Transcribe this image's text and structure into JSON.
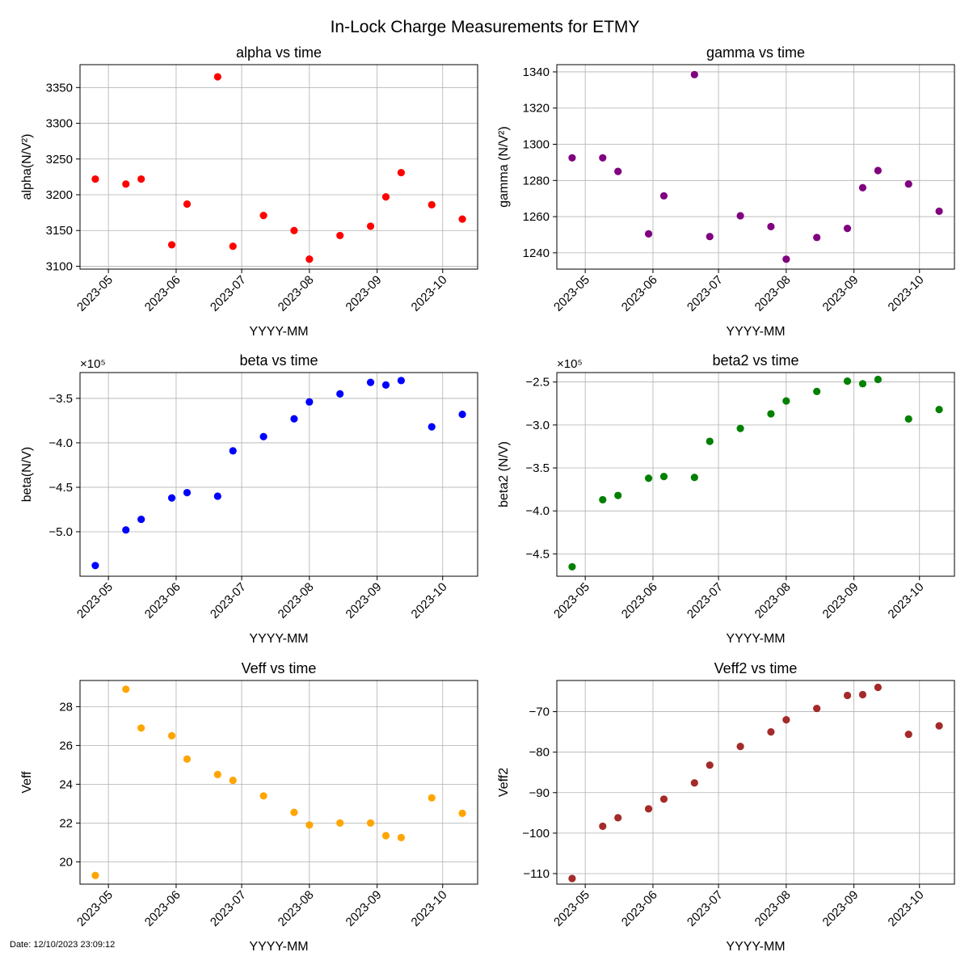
{
  "suptitle": "In-Lock Charge Measurements for ETMY",
  "footer": {
    "date": "Date: 12/10/2023 23:09:12"
  },
  "chart_data": [
    {
      "type": "scatter",
      "title": "alpha vs time",
      "xlabel": "YYYY-MM",
      "ylabel": "alpha(N/V²)",
      "color": "#ff0000",
      "x": [
        "2023-04-25",
        "2023-05-09",
        "2023-05-16",
        "2023-05-30",
        "2023-06-06",
        "2023-06-20",
        "2023-06-27",
        "2023-07-11",
        "2023-07-25",
        "2023-08-01",
        "2023-08-15",
        "2023-08-29",
        "2023-09-05",
        "2023-09-12",
        "2023-09-26",
        "2023-10-10"
      ],
      "y": [
        3222,
        3215,
        3222,
        3130,
        3187,
        3365,
        3128,
        3171,
        3150,
        3110,
        3143,
        3156,
        3197,
        3231,
        3186,
        3166
      ],
      "xlim": [
        "2023-04-18",
        "2023-10-17"
      ],
      "ylim": [
        3096,
        3382
      ],
      "yticks": [
        3100,
        3150,
        3200,
        3250,
        3300,
        3350
      ],
      "ytick_labels": [
        "3100",
        "3150",
        "3200",
        "3250",
        "3300",
        "3350"
      ],
      "offset_label": "",
      "xticks": [
        "2023-05-01",
        "2023-06-01",
        "2023-07-01",
        "2023-08-01",
        "2023-09-01",
        "2023-10-01"
      ],
      "xtick_labels": [
        "2023-05",
        "2023-06",
        "2023-07",
        "2023-08",
        "2023-09",
        "2023-10"
      ],
      "grid": true
    },
    {
      "type": "scatter",
      "title": "gamma vs time",
      "xlabel": "YYYY-MM",
      "ylabel": "gamma (N/V²)",
      "color": "#800080",
      "x": [
        "2023-04-25",
        "2023-05-09",
        "2023-05-16",
        "2023-05-30",
        "2023-06-06",
        "2023-06-20",
        "2023-06-27",
        "2023-07-11",
        "2023-07-25",
        "2023-08-01",
        "2023-08-15",
        "2023-08-29",
        "2023-09-05",
        "2023-09-12",
        "2023-09-26",
        "2023-10-10"
      ],
      "y": [
        1292.5,
        1292.5,
        1285,
        1250.5,
        1271.5,
        1338.5,
        1249,
        1260.5,
        1254.5,
        1236.5,
        1248.5,
        1253.5,
        1276,
        1285.5,
        1278,
        1263
      ],
      "xlim": [
        "2023-04-18",
        "2023-10-17"
      ],
      "ylim": [
        1231,
        1344
      ],
      "yticks": [
        1240,
        1260,
        1280,
        1300,
        1320,
        1340
      ],
      "ytick_labels": [
        "1240",
        "1260",
        "1280",
        "1300",
        "1320",
        "1340"
      ],
      "offset_label": "",
      "xticks": [
        "2023-05-01",
        "2023-06-01",
        "2023-07-01",
        "2023-08-01",
        "2023-09-01",
        "2023-10-01"
      ],
      "xtick_labels": [
        "2023-05",
        "2023-06",
        "2023-07",
        "2023-08",
        "2023-09",
        "2023-10"
      ],
      "grid": true
    },
    {
      "type": "scatter",
      "title": "beta vs time",
      "xlabel": "YYYY-MM",
      "ylabel": "beta(N/V)",
      "color": "#0000ff",
      "x": [
        "2023-04-25",
        "2023-05-09",
        "2023-05-16",
        "2023-05-30",
        "2023-06-06",
        "2023-06-20",
        "2023-06-27",
        "2023-07-11",
        "2023-07-25",
        "2023-08-01",
        "2023-08-15",
        "2023-08-29",
        "2023-09-05",
        "2023-09-12",
        "2023-09-26",
        "2023-10-10"
      ],
      "y": [
        -538000,
        -498000,
        -486000,
        -462000,
        -456000,
        -460000,
        -409000,
        -393000,
        -373000,
        -354000,
        -345000,
        -332000,
        -335000,
        -330000,
        -382000,
        -368000
      ],
      "xlim": [
        "2023-04-18",
        "2023-10-17"
      ],
      "ylim": [
        -550000,
        -321000
      ],
      "yticks": [
        -500000,
        -450000,
        -400000,
        -350000
      ],
      "ytick_labels": [
        "−5.0",
        "−4.5",
        "−4.0",
        "−3.5"
      ],
      "offset_label": "×10⁵",
      "xticks": [
        "2023-05-01",
        "2023-06-01",
        "2023-07-01",
        "2023-08-01",
        "2023-09-01",
        "2023-10-01"
      ],
      "xtick_labels": [
        "2023-05",
        "2023-06",
        "2023-07",
        "2023-08",
        "2023-09",
        "2023-10"
      ],
      "grid": true
    },
    {
      "type": "scatter",
      "title": "beta2 vs time",
      "xlabel": "YYYY-MM",
      "ylabel": "beta2 (N/V)",
      "color": "#008000",
      "x": [
        "2023-04-25",
        "2023-05-09",
        "2023-05-16",
        "2023-05-30",
        "2023-06-06",
        "2023-06-20",
        "2023-06-27",
        "2023-07-11",
        "2023-07-25",
        "2023-08-01",
        "2023-08-15",
        "2023-08-29",
        "2023-09-05",
        "2023-09-12",
        "2023-09-26",
        "2023-10-10"
      ],
      "y": [
        -465000,
        -387000,
        -382000,
        -362000,
        -360000,
        -361000,
        -319000,
        -304000,
        -287000,
        -272000,
        -261000,
        -249000,
        -252000,
        -247000,
        -293000,
        -282000
      ],
      "xlim": [
        "2023-04-18",
        "2023-10-17"
      ],
      "ylim": [
        -476000,
        -239000
      ],
      "yticks": [
        -450000,
        -400000,
        -350000,
        -300000,
        -250000
      ],
      "ytick_labels": [
        "−4.5",
        "−4.0",
        "−3.5",
        "−3.0",
        "−2.5"
      ],
      "offset_label": "×10⁵",
      "xticks": [
        "2023-05-01",
        "2023-06-01",
        "2023-07-01",
        "2023-08-01",
        "2023-09-01",
        "2023-10-01"
      ],
      "xtick_labels": [
        "2023-05",
        "2023-06",
        "2023-07",
        "2023-08",
        "2023-09",
        "2023-10"
      ],
      "grid": true
    },
    {
      "type": "scatter",
      "title": "Veff vs time",
      "xlabel": "YYYY-MM",
      "ylabel": "Veff",
      "color": "#ffa500",
      "x": [
        "2023-04-25",
        "2023-05-09",
        "2023-05-16",
        "2023-05-30",
        "2023-06-06",
        "2023-06-20",
        "2023-06-27",
        "2023-07-11",
        "2023-07-25",
        "2023-08-01",
        "2023-08-15",
        "2023-08-29",
        "2023-09-05",
        "2023-09-12",
        "2023-09-26",
        "2023-10-10"
      ],
      "y": [
        19.3,
        28.9,
        26.9,
        26.5,
        25.3,
        24.5,
        24.2,
        23.4,
        22.55,
        21.9,
        22.0,
        22.0,
        21.35,
        21.25,
        23.3,
        22.5
      ],
      "xlim": [
        "2023-04-18",
        "2023-10-17"
      ],
      "ylim": [
        18.85,
        29.35
      ],
      "yticks": [
        20,
        22,
        24,
        26,
        28
      ],
      "ytick_labels": [
        "20",
        "22",
        "24",
        "26",
        "28"
      ],
      "offset_label": "",
      "xticks": [
        "2023-05-01",
        "2023-06-01",
        "2023-07-01",
        "2023-08-01",
        "2023-09-01",
        "2023-10-01"
      ],
      "xtick_labels": [
        "2023-05",
        "2023-06",
        "2023-07",
        "2023-08",
        "2023-09",
        "2023-10"
      ],
      "grid": true
    },
    {
      "type": "scatter",
      "title": "Veff2 vs time",
      "xlabel": "YYYY-MM",
      "ylabel": "Veff2",
      "color": "#a52a2a",
      "x": [
        "2023-04-25",
        "2023-05-09",
        "2023-05-16",
        "2023-05-30",
        "2023-06-06",
        "2023-06-20",
        "2023-06-27",
        "2023-07-11",
        "2023-07-25",
        "2023-08-01",
        "2023-08-15",
        "2023-08-29",
        "2023-09-05",
        "2023-09-12",
        "2023-09-26",
        "2023-10-10"
      ],
      "y": [
        -111.2,
        -98.3,
        -96.2,
        -94.0,
        -91.6,
        -87.6,
        -83.2,
        -78.6,
        -75.0,
        -72.0,
        -69.2,
        -66.0,
        -65.8,
        -64.0,
        -75.6,
        -73.5
      ],
      "xlim": [
        "2023-04-18",
        "2023-10-17"
      ],
      "ylim": [
        -112.6,
        -62.3
      ],
      "yticks": [
        -110,
        -100,
        -90,
        -80,
        -70
      ],
      "ytick_labels": [
        "−110",
        "−100",
        "−90",
        "−80",
        "−70"
      ],
      "offset_label": "",
      "xticks": [
        "2023-05-01",
        "2023-06-01",
        "2023-07-01",
        "2023-08-01",
        "2023-09-01",
        "2023-10-01"
      ],
      "xtick_labels": [
        "2023-05",
        "2023-06",
        "2023-07",
        "2023-08",
        "2023-09",
        "2023-10"
      ],
      "grid": true
    }
  ]
}
